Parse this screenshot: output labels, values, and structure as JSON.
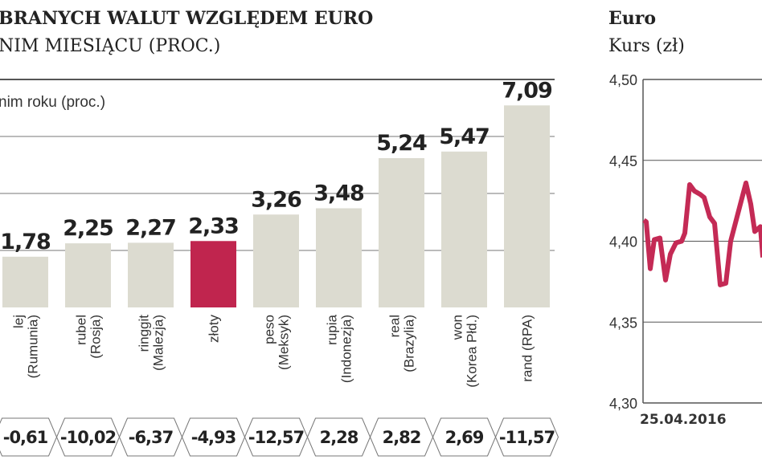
{
  "chart_data": [
    {
      "type": "bar",
      "title": "BRANYCH WALUT WZGLĘDEM EURO",
      "subtitle": "NIM MIESIĄCU (PROC.)",
      "secondary_label": "nim roku (proc.)",
      "categories": [
        [
          "lej",
          "(Rumunia)"
        ],
        [
          "rubel",
          "(Rosja)"
        ],
        [
          "ringgit",
          "(Malezja)"
        ],
        [
          "złoty",
          ""
        ],
        [
          "peso",
          "(Meksyk)"
        ],
        [
          "rupia",
          "(Indonezja)"
        ],
        [
          "real",
          "(Brazylia)"
        ],
        [
          "won",
          "(Korea Płd.)"
        ],
        [
          "rand (RPA)",
          ""
        ]
      ],
      "values": [
        1.78,
        2.25,
        2.27,
        2.33,
        3.26,
        3.48,
        5.24,
        5.47,
        7.09
      ],
      "value_labels": [
        "1,78",
        "2,25",
        "2,27",
        "2,33",
        "3,26",
        "3,48",
        "5,24",
        "5,47",
        "7,09"
      ],
      "yearly_values": [
        -0.61,
        -10.02,
        -6.37,
        -4.93,
        -12.57,
        2.28,
        2.82,
        2.69,
        -11.57
      ],
      "yearly_labels": [
        "-0,61",
        "-10,02",
        "-6,37",
        "-4,93",
        "-12,57",
        "2,28",
        "2,82",
        "2,69",
        "-11,57"
      ],
      "highlight_index": 3,
      "ylim": [
        0,
        8
      ],
      "grid": true,
      "colors": {
        "bar": "#dcdbd0",
        "highlight": "#c0254e"
      }
    },
    {
      "type": "line",
      "title": "Euro",
      "subtitle": "Kurs (zł)",
      "ylim": [
        4.3,
        4.5
      ],
      "yticks": [
        "4,50",
        "4,45",
        "4,40",
        "4,35",
        "4,30"
      ],
      "ytick_values": [
        4.5,
        4.45,
        4.4,
        4.35,
        4.3
      ],
      "x_start_label": "25.04.2016",
      "grid": true,
      "color": "#c42a55",
      "values": [
        4.413,
        4.412,
        4.383,
        4.401,
        4.402,
        4.376,
        4.392,
        4.399,
        4.4,
        4.405,
        4.435,
        4.431,
        4.429,
        4.427,
        4.415,
        4.411,
        4.373,
        4.374,
        4.4,
        4.436,
        4.423,
        4.406,
        4.409,
        4.39
      ]
    }
  ]
}
